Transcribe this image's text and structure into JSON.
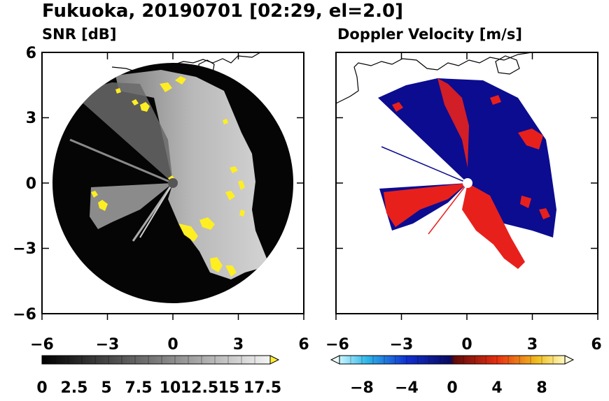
{
  "title": "Fukuoka, 20190701 [02:29, el=2.0]",
  "panels": [
    {
      "label": "SNR [dB]",
      "x_ticks": [
        "−6",
        "−3",
        "0",
        "3",
        "6"
      ],
      "y_ticks": [
        "6",
        "3",
        "0",
        "−3",
        "−6"
      ],
      "colorbar": {
        "labels": [
          "0",
          "2.5",
          "5",
          "7.5",
          "10",
          "12.5",
          "15",
          "17.5"
        ],
        "range": [
          0,
          17.5
        ],
        "extend": "max",
        "colors": {
          "low": "#000000",
          "high": "#f2f2f2",
          "extend": "#ffee33"
        }
      }
    },
    {
      "label": "Doppler Velocity [m/s]",
      "x_ticks": [
        "−6",
        "−3",
        "0",
        "3",
        "6"
      ],
      "colorbar": {
        "labels": [
          "−8",
          "−4",
          "0",
          "4",
          "8"
        ],
        "range": [
          -10,
          10
        ],
        "extend": "both",
        "colors": {
          "approach": "#0a0a8a",
          "recede": "#e02020"
        }
      }
    }
  ],
  "colors": {
    "snr_fill": "#d8d8d8",
    "snr_echo": "#ffee22",
    "vel_blue": "#0c0c90",
    "vel_red": "#e8201c"
  }
}
